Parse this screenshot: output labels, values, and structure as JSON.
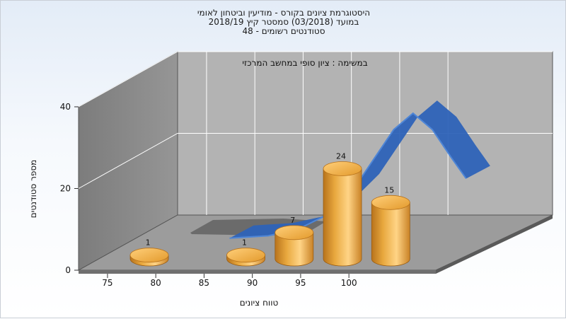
{
  "chart_data": {
    "type": "bar",
    "title_lines": [
      "היסטוגרמת ציונים בקורס - מודיעין וביטחון לאומי",
      "במועד  (03/2018)  סמסטר קיץ  2018/19",
      "סטודנטים רשומים - 48"
    ],
    "subtitle": "במשימה : ציון סופי במחשב המרכזי",
    "xlabel": "טווח ציונים",
    "ylabel": "מספר סטודנטים",
    "x_ticks": [
      "75",
      "80",
      "85",
      "90",
      "95",
      "100"
    ],
    "y_ticks": [
      "0",
      "20",
      "40"
    ],
    "ylim": [
      0,
      40
    ],
    "bars": [
      {
        "label": "1",
        "value": 1
      },
      {
        "label": "1",
        "value": 1
      },
      {
        "label": "7",
        "value": 7
      },
      {
        "label": "24",
        "value": 24
      },
      {
        "label": "15",
        "value": 15
      }
    ],
    "curve": {
      "type": "normal-distribution",
      "points": [
        [
          82,
          0.4
        ],
        [
          86,
          1.0
        ],
        [
          89,
          2.5
        ],
        [
          92,
          6
        ],
        [
          95,
          13
        ],
        [
          97,
          20
        ],
        [
          99,
          27
        ],
        [
          101,
          31
        ],
        [
          103,
          27
        ],
        [
          105,
          20
        ],
        [
          106.5,
          15
        ]
      ]
    },
    "colors": {
      "bar_main": "#e8a83e",
      "bar_light": "#ffd486",
      "bar_dark": "#b8731c",
      "curve_top": "#4f86d6",
      "curve_side": "#2e63b8",
      "back_wall": "#b3b3b3",
      "side_wall": "#8a8a8a",
      "floor": "#9c9c9c",
      "grid": "#ffffff"
    },
    "grid": true,
    "legend": "none"
  }
}
